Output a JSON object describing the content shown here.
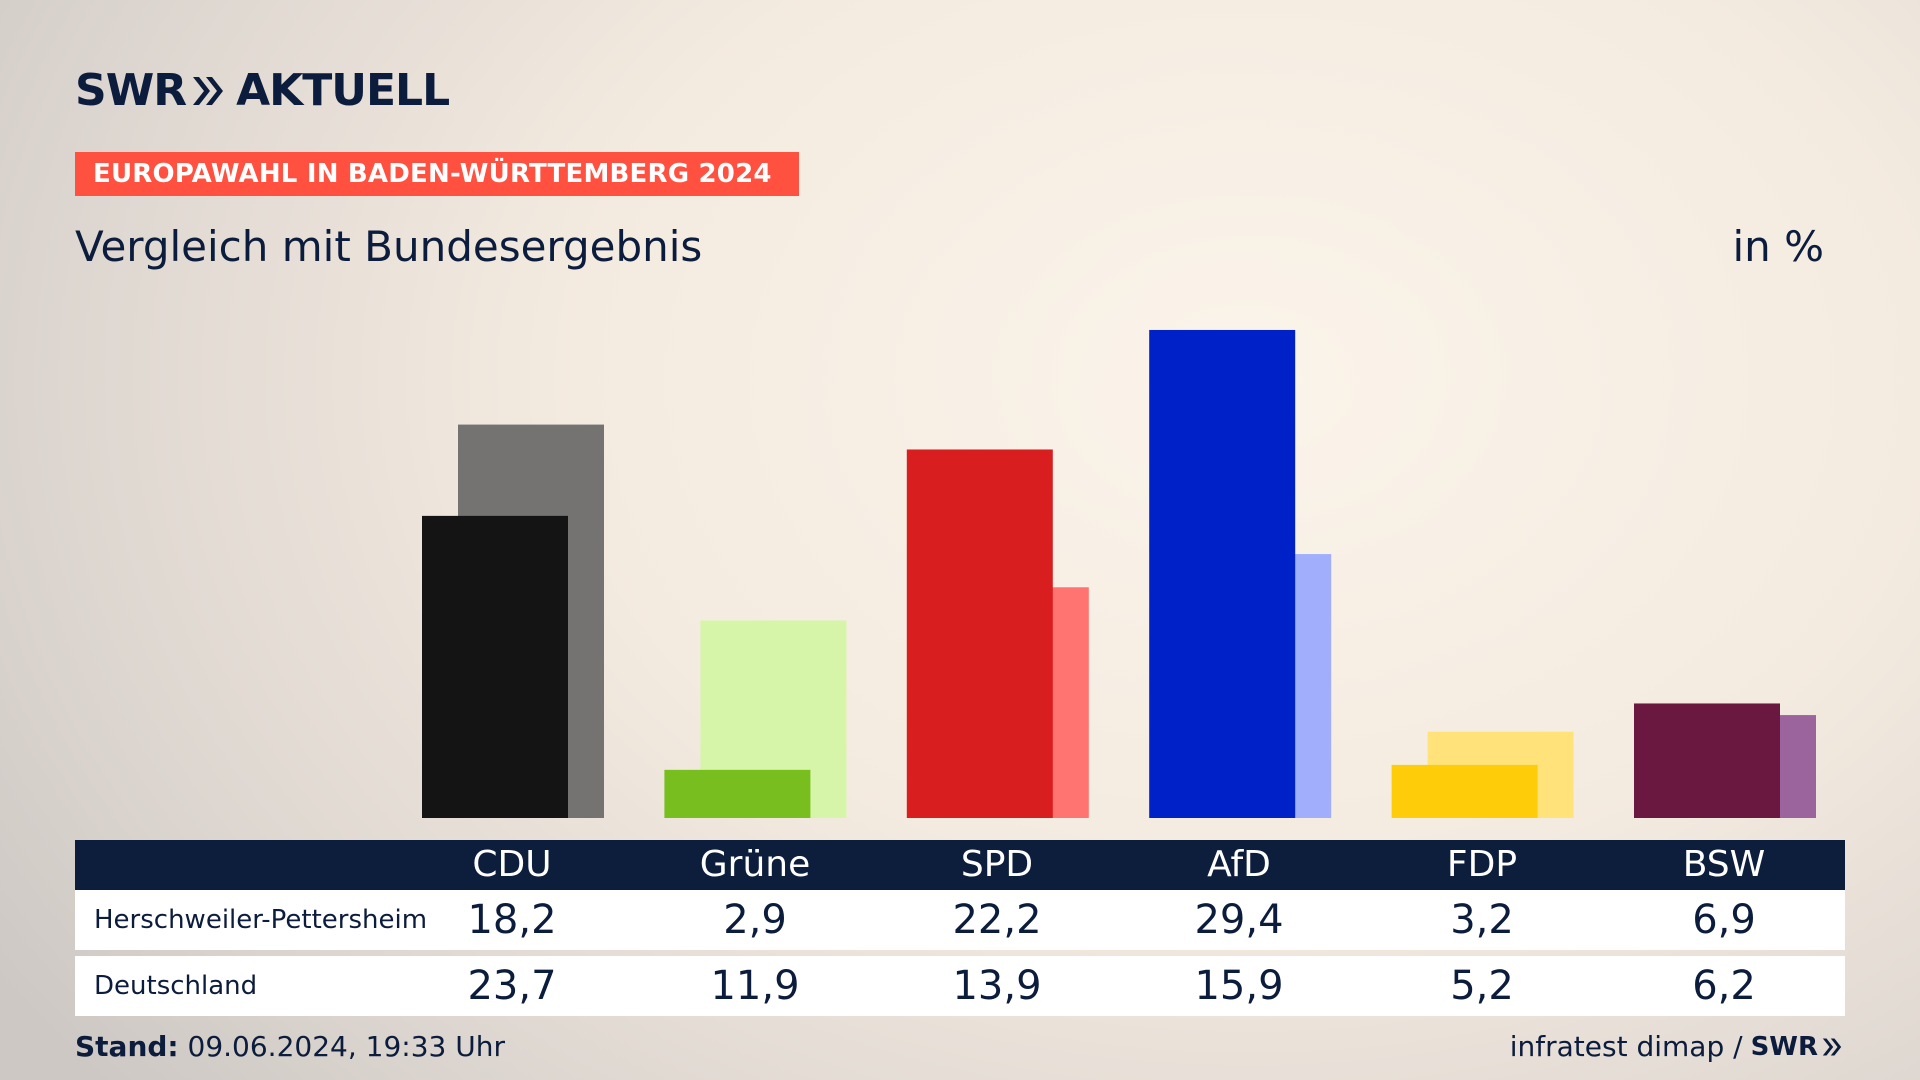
{
  "header": {
    "logo_text_left": "SWR",
    "logo_text_right": "AKTUELL",
    "badge": "EUROPAWAHL IN BADEN-WÜRTTEMBERG 2024",
    "subtitle": "Vergleich mit Bundesergebnis",
    "unit": "in %"
  },
  "chart_data": {
    "type": "bar",
    "title": "Vergleich mit Bundesergebnis",
    "ylabel": "in %",
    "ylim": [
      0,
      32
    ],
    "categories": [
      "CDU",
      "Grüne",
      "SPD",
      "AfD",
      "FDP",
      "BSW"
    ],
    "series": [
      {
        "name": "Herschweiler-Pettersheim",
        "values": [
          18.2,
          2.9,
          22.2,
          29.4,
          3.2,
          6.9
        ]
      },
      {
        "name": "Deutschland",
        "values": [
          23.7,
          11.9,
          13.9,
          15.9,
          5.2,
          6.2
        ]
      }
    ],
    "colors": {
      "primary": [
        "#141414",
        "#78be1e",
        "#d81e1e",
        "#0020c8",
        "#ffcc0a",
        "#6a1840"
      ],
      "secondary": [
        "#747372",
        "#d6f5a8",
        "#ff7470",
        "#a0aefc",
        "#ffe37a",
        "#9c649c"
      ]
    }
  },
  "table": {
    "rows": [
      {
        "label": "Herschweiler-Pettersheim",
        "values": [
          "18,2",
          "2,9",
          "22,2",
          "29,4",
          "3,2",
          "6,9"
        ]
      },
      {
        "label": "Deutschland",
        "values": [
          "23,7",
          "11,9",
          "13,9",
          "15,9",
          "5,2",
          "6,2"
        ]
      }
    ]
  },
  "footer": {
    "stand_label": "Stand:",
    "stand_value": " 09.06.2024, 19:33 Uhr",
    "source": "infratest dimap /",
    "source_logo": "SWR"
  }
}
